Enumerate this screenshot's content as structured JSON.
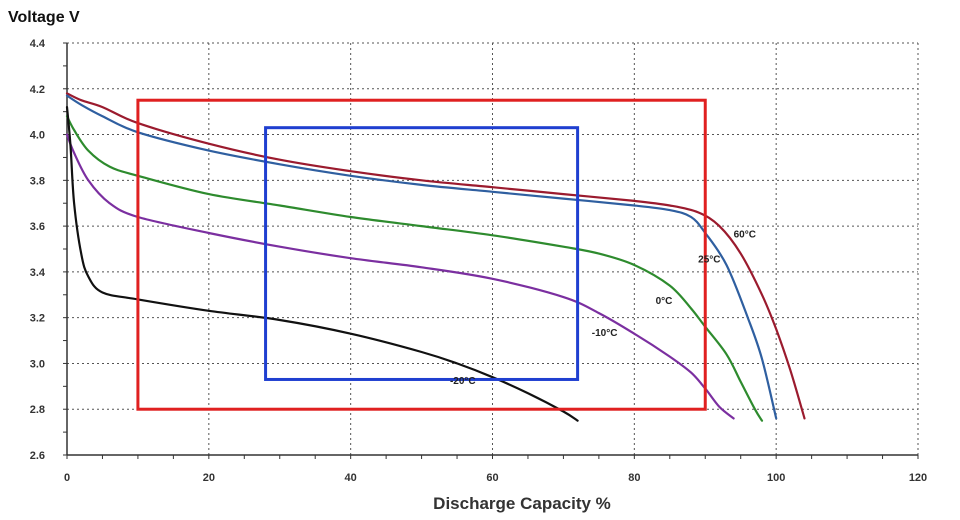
{
  "chart_data": {
    "type": "line",
    "title": "",
    "ylabel": "Voltage V",
    "xlabel": "Discharge Capacity %",
    "xlim": [
      0,
      120
    ],
    "ylim": [
      2.6,
      4.4
    ],
    "grid": true,
    "x_ticks": [
      0,
      20,
      40,
      60,
      80,
      100,
      120
    ],
    "y_ticks": [
      2.6,
      2.8,
      3.0,
      3.2,
      3.4,
      3.6,
      3.8,
      4.0,
      4.2,
      4.4
    ],
    "x_tick_labels": [
      "0",
      "20",
      "40",
      "60",
      "80",
      "100",
      "120"
    ],
    "y_tick_labels": [
      "2.6",
      "2.8",
      "3.0",
      "3.2",
      "3.4",
      "3.6",
      "3.8",
      "4.0",
      "4.2",
      "4.4"
    ],
    "series": [
      {
        "name": "60°C",
        "label": "60°C",
        "color": "#9b1b2e",
        "points": [
          [
            0,
            4.18
          ],
          [
            2,
            4.15
          ],
          [
            5,
            4.12
          ],
          [
            10,
            4.05
          ],
          [
            20,
            3.96
          ],
          [
            30,
            3.89
          ],
          [
            40,
            3.84
          ],
          [
            50,
            3.8
          ],
          [
            60,
            3.77
          ],
          [
            70,
            3.74
          ],
          [
            80,
            3.71
          ],
          [
            85,
            3.69
          ],
          [
            89,
            3.66
          ],
          [
            92,
            3.6
          ],
          [
            95,
            3.48
          ],
          [
            98,
            3.3
          ],
          [
            100,
            3.15
          ],
          [
            102,
            2.97
          ],
          [
            104,
            2.76
          ]
        ],
        "label_at": [
          94,
          3.55
        ]
      },
      {
        "name": "25°C",
        "label": "25°C",
        "color": "#2f5fa0",
        "points": [
          [
            0,
            4.17
          ],
          [
            2,
            4.13
          ],
          [
            5,
            4.08
          ],
          [
            10,
            4.01
          ],
          [
            20,
            3.93
          ],
          [
            30,
            3.87
          ],
          [
            40,
            3.82
          ],
          [
            50,
            3.78
          ],
          [
            60,
            3.75
          ],
          [
            70,
            3.72
          ],
          [
            80,
            3.69
          ],
          [
            85,
            3.67
          ],
          [
            88,
            3.64
          ],
          [
            90,
            3.57
          ],
          [
            93,
            3.43
          ],
          [
            96,
            3.2
          ],
          [
            98,
            3.02
          ],
          [
            100,
            2.76
          ]
        ],
        "label_at": [
          89,
          3.44
        ]
      },
      {
        "name": "0°C",
        "label": "0°C",
        "color": "#2e8b2e",
        "points": [
          [
            0,
            4.08
          ],
          [
            1,
            4.02
          ],
          [
            3,
            3.93
          ],
          [
            6,
            3.86
          ],
          [
            10,
            3.82
          ],
          [
            20,
            3.74
          ],
          [
            30,
            3.69
          ],
          [
            40,
            3.64
          ],
          [
            50,
            3.6
          ],
          [
            60,
            3.56
          ],
          [
            70,
            3.51
          ],
          [
            75,
            3.48
          ],
          [
            80,
            3.43
          ],
          [
            85,
            3.34
          ],
          [
            88,
            3.24
          ],
          [
            90,
            3.16
          ],
          [
            93,
            3.04
          ],
          [
            95,
            2.92
          ],
          [
            97,
            2.8
          ],
          [
            98,
            2.75
          ]
        ],
        "label_at": [
          83,
          3.26
        ]
      },
      {
        "name": "-10°C",
        "label": "-10°C",
        "color": "#7b2fa0",
        "points": [
          [
            0,
            4.0
          ],
          [
            1,
            3.92
          ],
          [
            3,
            3.8
          ],
          [
            6,
            3.7
          ],
          [
            10,
            3.64
          ],
          [
            20,
            3.57
          ],
          [
            30,
            3.51
          ],
          [
            40,
            3.46
          ],
          [
            50,
            3.42
          ],
          [
            60,
            3.37
          ],
          [
            70,
            3.29
          ],
          [
            75,
            3.22
          ],
          [
            80,
            3.13
          ],
          [
            85,
            3.03
          ],
          [
            88,
            2.96
          ],
          [
            90,
            2.89
          ],
          [
            92,
            2.81
          ],
          [
            94,
            2.76
          ]
        ],
        "label_at": [
          74,
          3.12
        ]
      },
      {
        "name": "-20°C",
        "label": "-20°C",
        "color": "#111111",
        "points": [
          [
            0,
            4.12
          ],
          [
            0.5,
            3.95
          ],
          [
            1,
            3.7
          ],
          [
            2,
            3.48
          ],
          [
            3,
            3.38
          ],
          [
            5,
            3.31
          ],
          [
            10,
            3.28
          ],
          [
            20,
            3.23
          ],
          [
            30,
            3.19
          ],
          [
            40,
            3.13
          ],
          [
            50,
            3.05
          ],
          [
            55,
            3.0
          ],
          [
            60,
            2.94
          ],
          [
            65,
            2.87
          ],
          [
            70,
            2.79
          ],
          [
            72,
            2.75
          ]
        ],
        "label_at": [
          54,
          2.91
        ]
      }
    ],
    "annotations": [
      {
        "type": "rectangle",
        "color": "#e02020",
        "x": [
          10,
          90
        ],
        "y": [
          2.8,
          4.15
        ]
      },
      {
        "type": "rectangle",
        "color": "#1f3fd0",
        "x": [
          28,
          72
        ],
        "y": [
          2.93,
          4.03
        ]
      }
    ]
  }
}
